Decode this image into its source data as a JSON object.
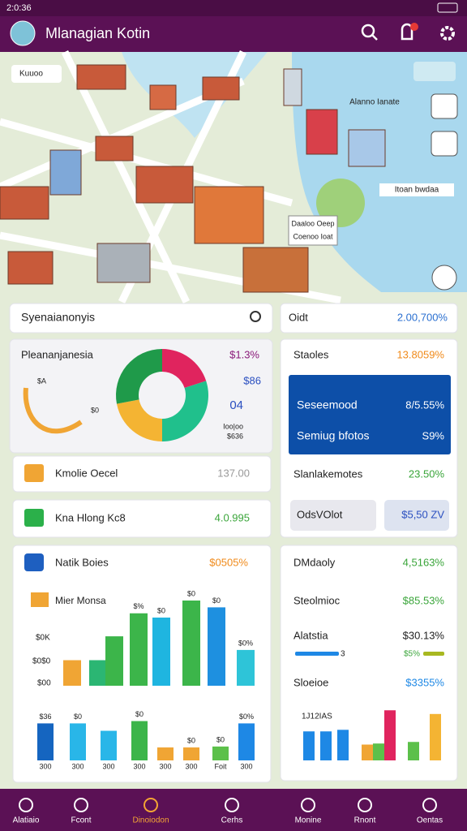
{
  "status_bar": {
    "time": "2:0:36"
  },
  "header": {
    "title": "Mlanagian Kotin"
  },
  "map": {
    "labels": [
      "Kuuoo",
      "Alanno Ianate",
      "Itoan bwdaa",
      "Daaloo Oeep",
      "Coenoo Ioat"
    ]
  },
  "search": {
    "placeholder": "Syenaianonyis"
  },
  "donut_card": {
    "title": "Pleananjanesia",
    "labels": [
      "$1.3%",
      "$86",
      "04",
      "Ioo|oo",
      "$636"
    ],
    "gauge_labels": [
      "$A",
      "$0"
    ],
    "segments": [
      {
        "value": 20,
        "color": "#e0245e"
      },
      {
        "value": 30,
        "color": "#20c08c"
      },
      {
        "value": 22,
        "color": "#f4b433"
      },
      {
        "value": 28,
        "color": "#1f9a4a"
      }
    ]
  },
  "list": [
    {
      "label": "Kmolie Oecel",
      "value": "137.00"
    },
    {
      "label": "Kna Hlong Kc8",
      "value": "4.0.995"
    }
  ],
  "chart_card": {
    "title": "Natik Boies",
    "value": "$0505%",
    "chart_title": "Mier Monsa",
    "y_labels": [
      "$0K",
      "$0$0",
      "$00"
    ],
    "upper": [
      {
        "value": 30,
        "color": "#f0a534"
      },
      {
        "value": 30,
        "color": "#2bb673"
      },
      {
        "value": 58,
        "color": "#3cb54a"
      },
      {
        "value": 85,
        "color": "#3cb54a"
      },
      {
        "value": 80,
        "color": "#1fb5e0"
      },
      {
        "value": 100,
        "color": "#3cb54a"
      },
      {
        "value": 92,
        "color": "#1e90e0"
      },
      {
        "value": 42,
        "color": "#2ec4d8"
      }
    ],
    "upper_top_labels": [
      null,
      null,
      null,
      "$%",
      "$0",
      "$0",
      "$0",
      "$0%"
    ],
    "lower": [
      {
        "value": 80,
        "color": "#1565c0"
      },
      {
        "value": 80,
        "color": "#29b6e8"
      },
      {
        "value": 64,
        "color": "#29b6e8"
      },
      {
        "value": 85,
        "color": "#3cb54a"
      },
      {
        "value": 28,
        "color": "#f0a534"
      },
      {
        "value": 28,
        "color": "#f0a534"
      },
      {
        "value": 30,
        "color": "#5cc04a"
      },
      {
        "value": 80,
        "color": "#1e88e5"
      }
    ],
    "lower_top_labels": [
      "$36",
      "$0",
      null,
      "$0",
      null,
      "$0",
      "$0",
      "$0%"
    ],
    "lower_labels": [
      "300",
      "300",
      "300",
      "300",
      "300",
      "300",
      "Foit",
      "300"
    ]
  },
  "summary": {
    "label": "Oidt",
    "value": "2.00,700%"
  },
  "stats_card": {
    "title": "Staoles",
    "value": "13.8059%",
    "highlight": [
      {
        "label": "Seseemood",
        "value": "8/5.55%"
      },
      {
        "label": "Semiug bfotos",
        "value": "S9%"
      }
    ],
    "row": {
      "label": "Slanlakemotes",
      "value": "23.50%"
    },
    "buttons": [
      "OdsVOlot",
      "$5,50 ZV"
    ]
  },
  "detail_card": {
    "rows": [
      {
        "label": "DMdaoly",
        "value": "4,5163%"
      },
      {
        "label": "Steolmioc",
        "value": "$85.53%"
      },
      {
        "label": "Alatstia",
        "value": "$30.13%"
      }
    ],
    "progress": [
      {
        "label": "3"
      },
      {
        "label": "$5%"
      }
    ],
    "last": {
      "label": "Sloeioe",
      "value": "$3355%"
    },
    "chart_title": "1J12IAS",
    "bars": [
      {
        "value": 55,
        "color": "#1e88e5"
      },
      {
        "value": 55,
        "color": "#1e88e5"
      },
      {
        "value": 58,
        "color": "#1e88e5"
      },
      {
        "value": 30,
        "color": "#f0a534"
      },
      {
        "value": 32,
        "color": "#5cc04a"
      },
      {
        "value": 95,
        "color": "#e0245e"
      },
      {
        "value": 35,
        "color": "#5cc04a"
      },
      {
        "value": 88,
        "color": "#f4b433"
      }
    ]
  },
  "nav": [
    "Alatiaio",
    "Fcont",
    "Dinoiodon",
    "Cerhs",
    "Monine",
    "Rnont",
    "Oentas"
  ]
}
